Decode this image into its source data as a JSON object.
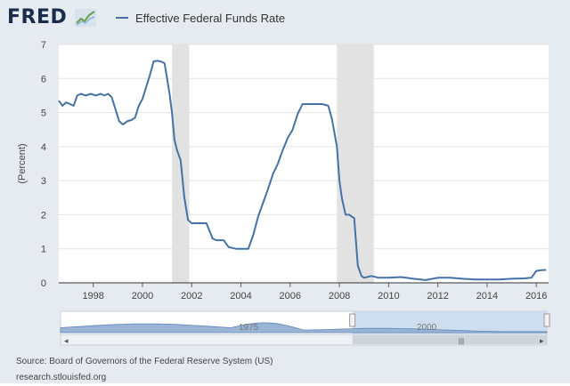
{
  "header": {
    "logo_text": "FRED",
    "logo_icon": "line-chart-icon",
    "legend_label": "Effective Federal Funds Rate",
    "legend_color": "#4472a8"
  },
  "chart_data": {
    "type": "line",
    "title": "",
    "xlabel": "",
    "ylabel": "(Percent)",
    "ylim": [
      0,
      7
    ],
    "xlim": [
      1996.6,
      2016.5
    ],
    "x_ticks": [
      1998,
      2000,
      2002,
      2004,
      2006,
      2008,
      2010,
      2012,
      2014,
      2016
    ],
    "y_ticks": [
      0,
      1,
      2,
      3,
      4,
      5,
      6,
      7
    ],
    "grid": "horizontal",
    "recessions": [
      [
        2001.2,
        2001.9
      ],
      [
        2007.9,
        2009.4
      ]
    ],
    "series": [
      {
        "name": "Effective Federal Funds Rate",
        "color": "#4472a8",
        "x": [
          1996.6,
          1996.75,
          1996.9,
          1997.05,
          1997.2,
          1997.35,
          1997.5,
          1997.7,
          1997.9,
          1998.1,
          1998.3,
          1998.45,
          1998.6,
          1998.75,
          1998.9,
          1999.05,
          1999.2,
          1999.4,
          1999.55,
          1999.7,
          1999.85,
          2000.0,
          2000.15,
          2000.3,
          2000.45,
          2000.6,
          2000.75,
          2000.9,
          2001.0,
          2001.1,
          2001.2,
          2001.3,
          2001.4,
          2001.55,
          2001.7,
          2001.85,
          2002.0,
          2002.3,
          2002.6,
          2002.85,
          2003.0,
          2003.3,
          2003.5,
          2003.8,
          2004.0,
          2004.3,
          2004.5,
          2004.7,
          2004.9,
          2005.1,
          2005.3,
          2005.5,
          2005.7,
          2005.9,
          2006.1,
          2006.3,
          2006.5,
          2006.7,
          2007.0,
          2007.3,
          2007.55,
          2007.7,
          2007.9,
          2008.0,
          2008.1,
          2008.25,
          2008.4,
          2008.6,
          2008.75,
          2008.9,
          2009.0,
          2009.3,
          2009.6,
          2010.0,
          2010.5,
          2011.0,
          2011.5,
          2012.0,
          2012.5,
          2013.0,
          2013.5,
          2014.0,
          2014.5,
          2015.0,
          2015.5,
          2015.8,
          2016.0,
          2016.2,
          2016.4
        ],
        "values": [
          5.35,
          5.2,
          5.3,
          5.25,
          5.2,
          5.5,
          5.55,
          5.5,
          5.55,
          5.5,
          5.55,
          5.5,
          5.55,
          5.45,
          5.1,
          4.75,
          4.65,
          4.75,
          4.78,
          4.85,
          5.2,
          5.4,
          5.75,
          6.1,
          6.5,
          6.52,
          6.5,
          6.45,
          6.0,
          5.55,
          5.0,
          4.2,
          3.9,
          3.6,
          2.5,
          1.85,
          1.75,
          1.75,
          1.75,
          1.3,
          1.25,
          1.25,
          1.05,
          1.0,
          1.0,
          1.0,
          1.4,
          1.95,
          2.35,
          2.75,
          3.2,
          3.5,
          3.9,
          4.25,
          4.5,
          4.95,
          5.25,
          5.25,
          5.25,
          5.25,
          5.2,
          4.8,
          4.0,
          3.0,
          2.5,
          2.0,
          2.0,
          1.9,
          0.5,
          0.2,
          0.15,
          0.2,
          0.15,
          0.15,
          0.17,
          0.12,
          0.08,
          0.15,
          0.15,
          0.12,
          0.1,
          0.1,
          0.1,
          0.12,
          0.13,
          0.15,
          0.35,
          0.37,
          0.38
        ]
      }
    ]
  },
  "navigator": {
    "label_left": "1975",
    "label_right": "2000",
    "left_arrow": "◂",
    "right_arrow": "▸",
    "grip": "|||",
    "selection": [
      0.6,
      1.0
    ]
  },
  "footer": {
    "source": "Source: Board of Governors of the Federal Reserve System (US)",
    "url": "research.stlouisfed.org"
  }
}
